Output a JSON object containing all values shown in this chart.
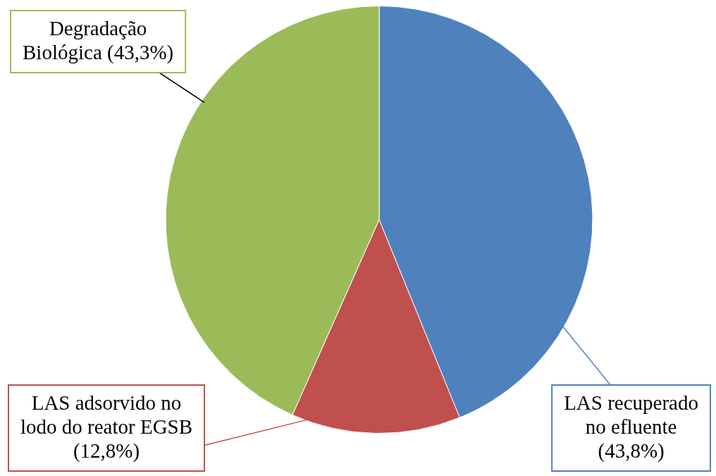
{
  "chart_data": {
    "type": "pie",
    "categories": [
      "LAS recuperado no efluente",
      "LAS adsorvido no lodo do reator EGSB",
      "Degradação Biológica"
    ],
    "values": [
      43.8,
      12.8,
      43.3
    ],
    "value_labels": [
      "(43,8%)",
      "(12,8%)",
      "(43,3%)"
    ],
    "colors": [
      "#4f81bd",
      "#c0504d",
      "#9bbb59"
    ],
    "legend": false
  }
}
